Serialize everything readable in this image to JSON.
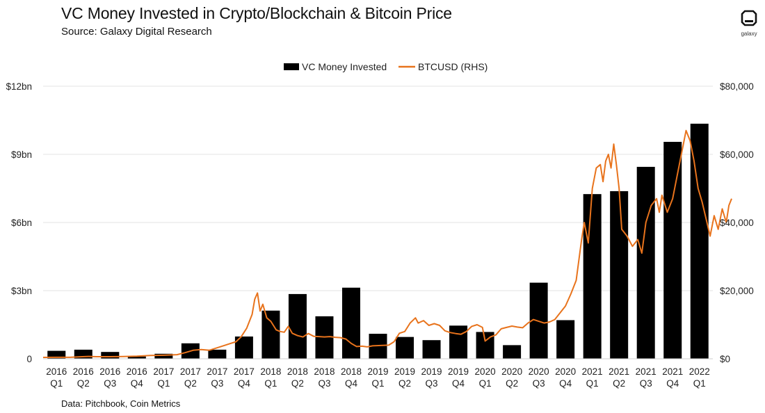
{
  "header": {
    "title": "VC Money Invested in Crypto/Blockchain & Bitcoin Price",
    "subtitle": "Source: Galaxy Digital Research",
    "logo_text": "galaxy"
  },
  "footer": {
    "note": "Data: Pitchbook, Coin Metrics"
  },
  "colors": {
    "bar": "#000000",
    "line": "#e8731c",
    "grid": "#e3e3e3"
  },
  "chart_data": {
    "type": "bar",
    "title": "VC Money Invested in Crypto/Blockchain & Bitcoin Price",
    "categories": [
      {
        "year": "2016",
        "q": "Q1"
      },
      {
        "year": "2016",
        "q": "Q2"
      },
      {
        "year": "2016",
        "q": "Q3"
      },
      {
        "year": "2016",
        "q": "Q4"
      },
      {
        "year": "2017",
        "q": "Q1"
      },
      {
        "year": "2017",
        "q": "Q2"
      },
      {
        "year": "2017",
        "q": "Q3"
      },
      {
        "year": "2017",
        "q": "Q4"
      },
      {
        "year": "2018",
        "q": "Q1"
      },
      {
        "year": "2018",
        "q": "Q2"
      },
      {
        "year": "2018",
        "q": "Q3"
      },
      {
        "year": "2018",
        "q": "Q4"
      },
      {
        "year": "2019",
        "q": "Q1"
      },
      {
        "year": "2019",
        "q": "Q2"
      },
      {
        "year": "2019",
        "q": "Q3"
      },
      {
        "year": "2019",
        "q": "Q4"
      },
      {
        "year": "2020",
        "q": "Q1"
      },
      {
        "year": "2020",
        "q": "Q2"
      },
      {
        "year": "2020",
        "q": "Q3"
      },
      {
        "year": "2020",
        "q": "Q4"
      },
      {
        "year": "2021",
        "q": "Q1"
      },
      {
        "year": "2021",
        "q": "Q2"
      },
      {
        "year": "2021",
        "q": "Q3"
      },
      {
        "year": "2021",
        "q": "Q4"
      },
      {
        "year": "2022",
        "q": "Q1"
      }
    ],
    "series": [
      {
        "name": "VC Money Invested",
        "axis": "left",
        "values": [
          0.35,
          0.4,
          0.3,
          0.1,
          0.22,
          0.68,
          0.4,
          0.98,
          2.12,
          2.85,
          1.87,
          3.13,
          1.1,
          0.96,
          0.82,
          1.46,
          1.18,
          0.6,
          3.35,
          1.7,
          7.25,
          7.38,
          8.45,
          9.55,
          10.35
        ]
      },
      {
        "name": "BTCUSD (RHS)",
        "axis": "right",
        "points": [
          [
            0,
            400
          ],
          [
            0.5,
            420
          ],
          [
            1,
            430
          ],
          [
            1.4,
            600
          ],
          [
            1.7,
            700
          ],
          [
            2,
            620
          ],
          [
            2.5,
            610
          ],
          [
            3,
            650
          ],
          [
            3.5,
            750
          ],
          [
            4,
            960
          ],
          [
            4.5,
            1050
          ],
          [
            5,
            1200
          ],
          [
            5.3,
            1800
          ],
          [
            5.6,
            2500
          ],
          [
            5.9,
            2700
          ],
          [
            6.2,
            2500
          ],
          [
            6.6,
            3500
          ],
          [
            7,
            4500
          ],
          [
            7.2,
            5000
          ],
          [
            7.4,
            6500
          ],
          [
            7.6,
            9000
          ],
          [
            7.8,
            13000
          ],
          [
            7.9,
            17500
          ],
          [
            8.0,
            19300
          ],
          [
            8.1,
            14000
          ],
          [
            8.2,
            16000
          ],
          [
            8.35,
            12000
          ],
          [
            8.5,
            11000
          ],
          [
            8.7,
            8500
          ],
          [
            8.85,
            8000
          ],
          [
            9.0,
            7800
          ],
          [
            9.15,
            9500
          ],
          [
            9.3,
            7500
          ],
          [
            9.5,
            6800
          ],
          [
            9.7,
            6400
          ],
          [
            9.9,
            7400
          ],
          [
            10.1,
            6600
          ],
          [
            10.3,
            6500
          ],
          [
            10.5,
            6400
          ],
          [
            10.7,
            6500
          ],
          [
            10.9,
            6300
          ],
          [
            11.1,
            6200
          ],
          [
            11.3,
            5800
          ],
          [
            11.5,
            4500
          ],
          [
            11.7,
            3600
          ],
          [
            11.9,
            3700
          ],
          [
            12.1,
            3500
          ],
          [
            12.3,
            3800
          ],
          [
            12.6,
            3900
          ],
          [
            12.9,
            4000
          ],
          [
            13.1,
            5000
          ],
          [
            13.3,
            7500
          ],
          [
            13.5,
            8000
          ],
          [
            13.7,
            10500
          ],
          [
            13.9,
            12000
          ],
          [
            14.0,
            10500
          ],
          [
            14.2,
            11200
          ],
          [
            14.4,
            9800
          ],
          [
            14.6,
            10300
          ],
          [
            14.8,
            9800
          ],
          [
            15.0,
            8200
          ],
          [
            15.2,
            7700
          ],
          [
            15.4,
            7400
          ],
          [
            15.6,
            7200
          ],
          [
            15.8,
            8000
          ],
          [
            16.0,
            9500
          ],
          [
            16.2,
            10000
          ],
          [
            16.4,
            9200
          ],
          [
            16.5,
            5200
          ],
          [
            16.7,
            6400
          ],
          [
            16.9,
            7000
          ],
          [
            17.1,
            8800
          ],
          [
            17.3,
            9200
          ],
          [
            17.5,
            9600
          ],
          [
            17.7,
            9300
          ],
          [
            17.9,
            9100
          ],
          [
            18.1,
            10500
          ],
          [
            18.3,
            11500
          ],
          [
            18.5,
            11000
          ],
          [
            18.7,
            10500
          ],
          [
            18.9,
            10800
          ],
          [
            19.1,
            11500
          ],
          [
            19.3,
            13500
          ],
          [
            19.5,
            15500
          ],
          [
            19.7,
            19000
          ],
          [
            19.9,
            23000
          ],
          [
            20.0,
            29000
          ],
          [
            20.1,
            35000
          ],
          [
            20.2,
            40000
          ],
          [
            20.35,
            34000
          ],
          [
            20.5,
            50000
          ],
          [
            20.65,
            56000
          ],
          [
            20.8,
            57000
          ],
          [
            20.9,
            52000
          ],
          [
            21.0,
            58000
          ],
          [
            21.1,
            60000
          ],
          [
            21.2,
            56000
          ],
          [
            21.3,
            63000
          ],
          [
            21.4,
            57000
          ],
          [
            21.5,
            50000
          ],
          [
            21.6,
            38000
          ],
          [
            21.8,
            36000
          ],
          [
            22.0,
            33000
          ],
          [
            22.2,
            35000
          ],
          [
            22.35,
            31000
          ],
          [
            22.5,
            40000
          ],
          [
            22.7,
            45000
          ],
          [
            22.9,
            47000
          ],
          [
            23.0,
            43000
          ],
          [
            23.1,
            48000
          ],
          [
            23.3,
            43000
          ],
          [
            23.5,
            47000
          ],
          [
            23.7,
            55000
          ],
          [
            23.85,
            61000
          ],
          [
            24.0,
            67000
          ],
          [
            24.15,
            64000
          ],
          [
            24.3,
            58000
          ],
          [
            24.45,
            50000
          ],
          [
            24.6,
            46000
          ],
          [
            24.75,
            41000
          ],
          [
            24.9,
            36000
          ],
          [
            25.05,
            42000
          ],
          [
            25.2,
            38000
          ],
          [
            25.35,
            44000
          ],
          [
            25.5,
            40000
          ],
          [
            25.6,
            45000
          ],
          [
            25.7,
            47000
          ]
        ]
      }
    ],
    "left_axis": {
      "ticks": [
        "0",
        "$3bn",
        "$6bn",
        "$9bn",
        "$12bn"
      ],
      "tick_values": [
        0,
        3,
        6,
        9,
        12
      ],
      "ylim": [
        0,
        12
      ]
    },
    "right_axis": {
      "ticks": [
        "$0",
        "$20,000",
        "$40,000",
        "$60,000",
        "$80,000"
      ],
      "tick_values": [
        0,
        20000,
        40000,
        60000,
        80000
      ],
      "ylim": [
        0,
        80000
      ]
    },
    "legend": {
      "placement": "top-center",
      "items": [
        "VC Money Invested",
        "BTCUSD (RHS)"
      ]
    },
    "grid": true
  }
}
